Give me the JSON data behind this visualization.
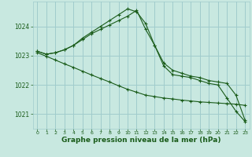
{
  "background_color": "#c8e8e0",
  "grid_color": "#a0cccc",
  "line_color": "#1a5c1a",
  "marker_color": "#1a5c1a",
  "xlabel": "Graphe pression niveau de la mer (hPa)",
  "xlabel_fontsize": 6.5,
  "xlabel_color": "#1a5c1a",
  "ytick_color": "#1a5c1a",
  "xtick_color": "#1a5c1a",
  "ylim": [
    1020.5,
    1024.85
  ],
  "xlim": [
    -0.5,
    23.5
  ],
  "yticks": [
    1021,
    1022,
    1023,
    1024
  ],
  "xticks": [
    0,
    1,
    2,
    3,
    4,
    5,
    6,
    7,
    8,
    9,
    10,
    11,
    12,
    13,
    14,
    15,
    16,
    17,
    18,
    19,
    20,
    21,
    22,
    23
  ],
  "series": [
    {
      "x": [
        0,
        1,
        2,
        3,
        4,
        5,
        6,
        7,
        8,
        9,
        10,
        11,
        12,
        13,
        14,
        15,
        16,
        17,
        18,
        19,
        20,
        21,
        22,
        23
      ],
      "y": [
        1023.15,
        1023.05,
        1023.1,
        1023.2,
        1023.35,
        1023.55,
        1023.75,
        1023.9,
        1024.05,
        1024.2,
        1024.35,
        1024.55,
        1023.9,
        1023.35,
        1022.75,
        1022.5,
        1022.4,
        1022.3,
        1022.25,
        1022.15,
        1022.1,
        1022.05,
        1021.65,
        1020.8
      ]
    },
    {
      "x": [
        0,
        1,
        2,
        3,
        4,
        5,
        6,
        7,
        8,
        9,
        10,
        11,
        12,
        13,
        14,
        15,
        16,
        17,
        18,
        19,
        20,
        21,
        22,
        23
      ],
      "y": [
        1023.15,
        1023.05,
        1023.1,
        1023.2,
        1023.35,
        1023.6,
        1023.8,
        1024.0,
        1024.2,
        1024.4,
        1024.6,
        1024.5,
        1024.1,
        1023.35,
        1022.65,
        1022.35,
        1022.3,
        1022.25,
        1022.15,
        1022.05,
        1022.0,
        1021.55,
        1021.1,
        1020.75
      ]
    },
    {
      "x": [
        0,
        1,
        2,
        3,
        4,
        5,
        6,
        7,
        8,
        9,
        10,
        11,
        12,
        13,
        14,
        15,
        16,
        17,
        18,
        19,
        20,
        21,
        22,
        23
      ],
      "y": [
        1023.1,
        1022.98,
        1022.85,
        1022.72,
        1022.6,
        1022.47,
        1022.34,
        1022.22,
        1022.1,
        1021.97,
        1021.85,
        1021.75,
        1021.65,
        1021.6,
        1021.55,
        1021.52,
        1021.48,
        1021.45,
        1021.42,
        1021.4,
        1021.38,
        1021.36,
        1021.34,
        1021.3
      ]
    }
  ]
}
